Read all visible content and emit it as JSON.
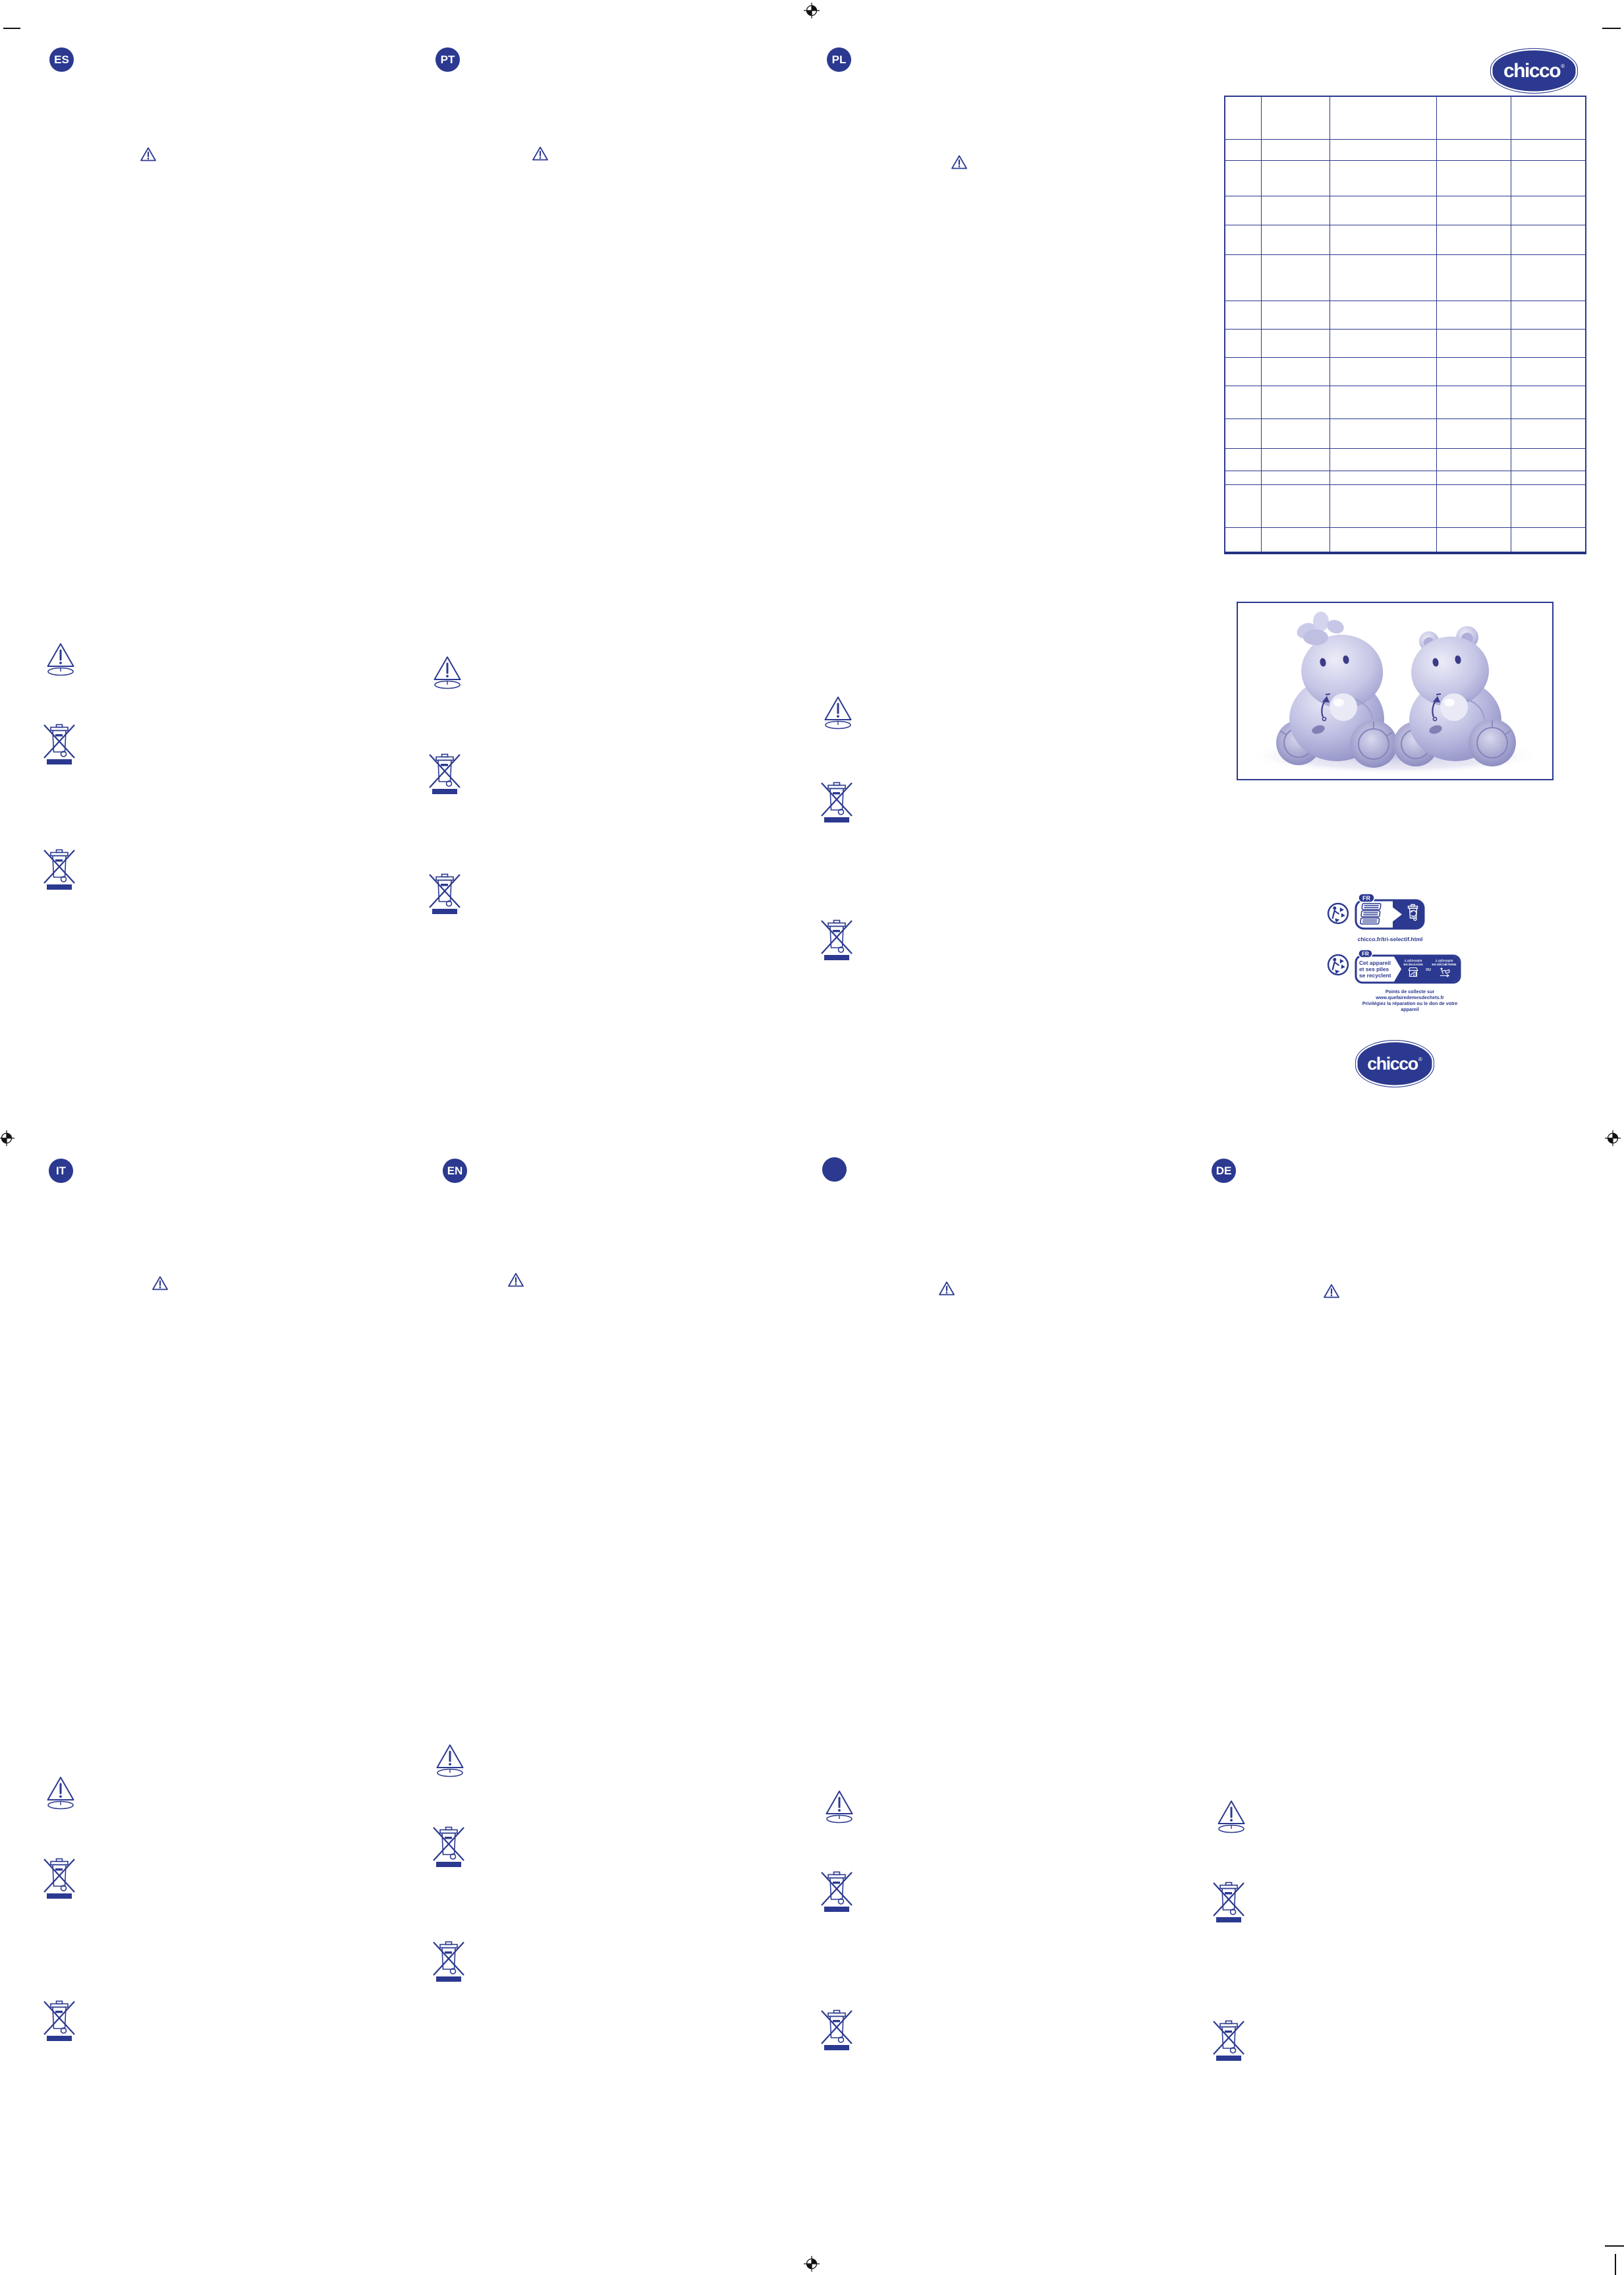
{
  "colors": {
    "ink": "#2b3990",
    "mark_black": "#111111",
    "toy_purple": "#b9b9de"
  },
  "languages": {
    "top": [
      "ES",
      "PT",
      "PL"
    ],
    "bottom": [
      "IT",
      "EN",
      "",
      "DE"
    ]
  },
  "brand": {
    "name": "chicco",
    "registered": "®"
  },
  "icons": [
    "warning-triangle-icon",
    "button-battery-warning-icon",
    "weee-crossed-out-bin-icon",
    "triman-recycling-icon",
    "registration-mark-icon",
    "leaflet-sorting-icon",
    "recycling-bin-icon",
    "store-dropoff-icon",
    "waste-center-dropoff-icon",
    "toy-animals-illustration"
  ],
  "spec_table": {
    "columns": 5,
    "rows": 15,
    "content": ""
  },
  "recycling_labels": {
    "label1": {
      "badge": "FR",
      "caption": "chicco.fr/tri-selectif.html"
    },
    "label2": {
      "badge": "FR",
      "claim_line1": "Cet appareil",
      "claim_line2": "et ses piles",
      "claim_line3": "se recyclent",
      "option1_line1": "À DÉPOSER",
      "option1_line2": "EN MAGASIN",
      "or": "OU",
      "option2_line1": "À DÉPOSER",
      "option2_line2": "EN DÉCHÈTERIE",
      "note1": "Points de collecte sur www.quefairedemesdechets.fr",
      "note2": "Privilégiez la réparation ou le don de votre appareil"
    }
  }
}
